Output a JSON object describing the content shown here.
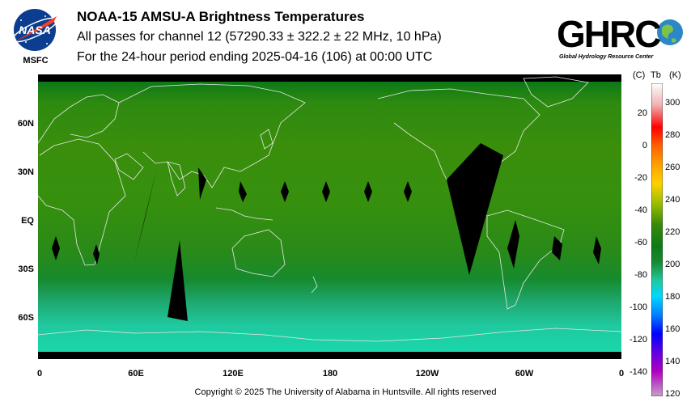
{
  "header": {
    "title": "NOAA-15 AMSU-A Brightness Temperatures",
    "subtitle1": "All passes for channel 12 (57290.33 ± 322.2 ± 22 MHz, 10 hPa)",
    "subtitle2": "For the 24-hour period ending 2025-04-16 (106) at 00:00 UTC"
  },
  "logos": {
    "nasa_text": "NASA",
    "nasa_caption": "MSFC",
    "ghrc_text": "GHRC",
    "ghrc_caption": "Global Hydrology Resource Center"
  },
  "map": {
    "lat_labels": [
      "60N",
      "30N",
      "EQ",
      "30S",
      "60S"
    ],
    "lon_labels": [
      "0",
      "60E",
      "120E",
      "180",
      "120W",
      "60W",
      "0"
    ],
    "land_outline_color": "#e8e8e8",
    "no_data_color": "#000000"
  },
  "colorbar": {
    "unit_c": "(C)",
    "unit_tb": "Tb",
    "unit_k": "(K)",
    "celsius_ticks": [
      "20",
      "0",
      "-20",
      "-40",
      "-60",
      "-80",
      "-100",
      "-120",
      "-140"
    ],
    "kelvin_ticks": [
      "300",
      "280",
      "260",
      "240",
      "220",
      "200",
      "180",
      "160",
      "140",
      "120"
    ],
    "kelvin_range": [
      120,
      310
    ]
  },
  "footer": {
    "copyright": "Copyright © 2025 The University of Alabama in Huntsville.  All rights reserved"
  }
}
